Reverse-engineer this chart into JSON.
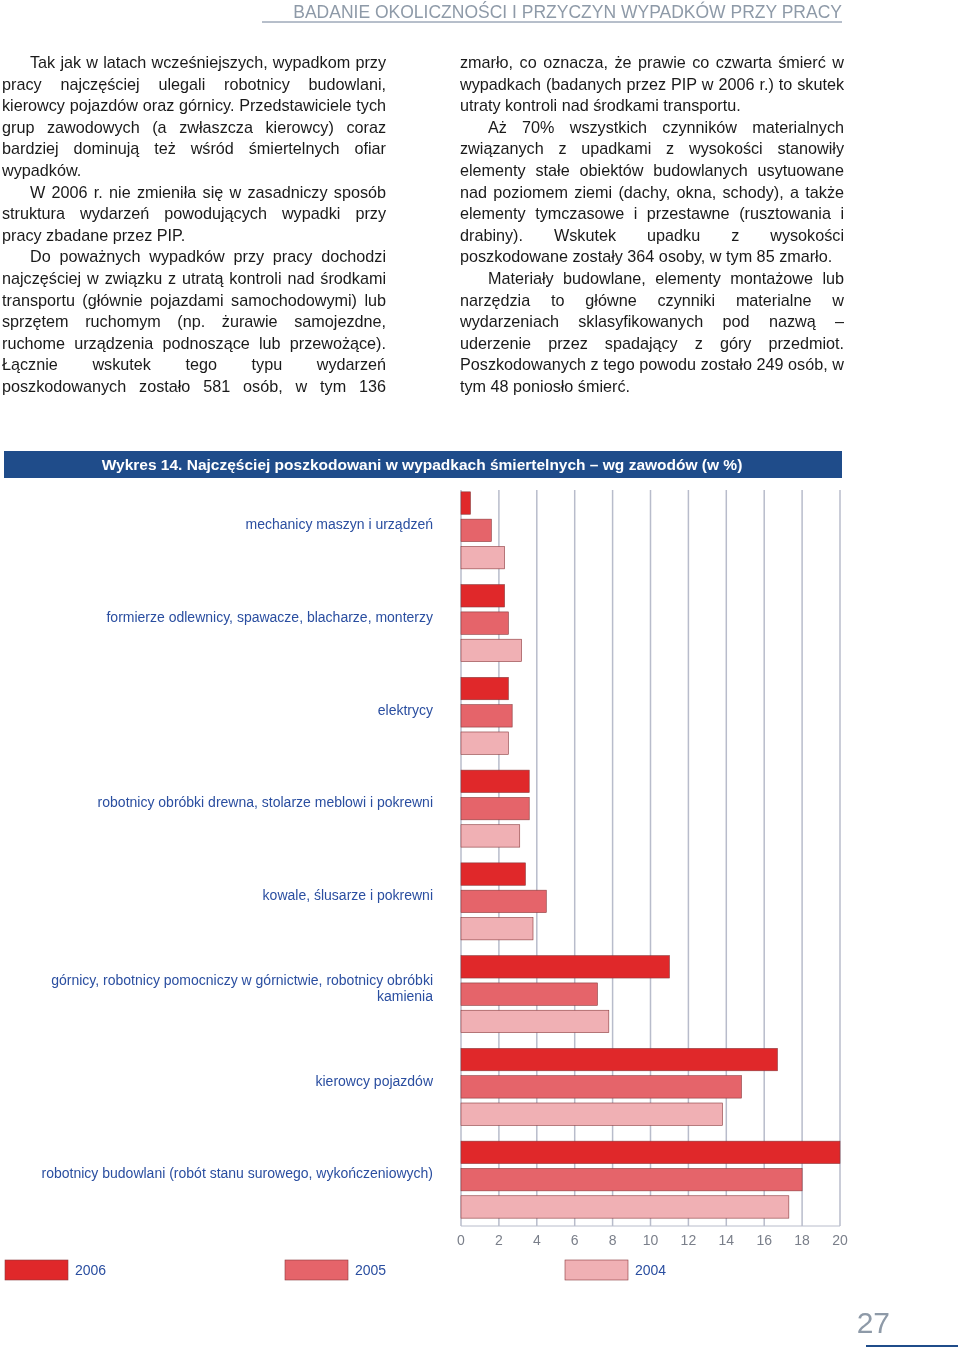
{
  "chart_data": {
    "type": "bar",
    "orientation": "horizontal",
    "title": "Wykres 14. Najczęściej poszkodowani w wypadkach śmiertelnych – wg zawodów (w %)",
    "categories": [
      "mechanicy maszyn i urządzeń",
      "formierze odlewnicy, spawacze, blacharze, monterzy",
      "elektrycy",
      "robotnicy obróbki drewna, stolarze meblowi i pokrewni",
      "kowale, ślusarze i pokrewni",
      "górnicy, robotnicy pomocniczy w górnictwie, robotnicy obróbki kamienia",
      "kierowcy pojazdów",
      "robotnicy budowlani (robót stanu surowego, wykończeniowych)"
    ],
    "series": [
      {
        "name": "2006",
        "color": "#e0282a",
        "values": [
          0.5,
          2.3,
          2.5,
          3.6,
          3.4,
          11.0,
          16.7,
          20.0
        ]
      },
      {
        "name": "2005",
        "color": "#e5646a",
        "values": [
          1.6,
          2.5,
          2.7,
          3.6,
          4.5,
          7.2,
          14.8,
          18.0
        ]
      },
      {
        "name": "2004",
        "color": "#f0b0b4",
        "values": [
          2.3,
          3.2,
          2.5,
          3.1,
          3.8,
          7.8,
          13.8,
          17.3
        ]
      }
    ],
    "xlim": [
      0,
      20
    ],
    "xticks": [
      0,
      2,
      4,
      6,
      8,
      10,
      12,
      14,
      16,
      18,
      20
    ],
    "grid": "x",
    "legend": "bottom",
    "annotations": [
      "BADANIE OKOLICZNOŚCI I PRZYCZYN WYPADKÓW PRZY PRACY",
      "Tak jak w latach wcześniejszych, wypadkom przy pracy najczęściej ulegali robotnicy budowlani, kierowcy pojazdów oraz górnicy. Przedstawiciele tych grup zawodowych (a zwłaszcza kierowcy) coraz bardziej dominują też wśród śmiertelnych ofiar wypadków.",
      "W 2006 r. nie zmieniła się w zasadniczy sposób struktura wydarzeń powodujących wypadki przy pracy zbadane przez PIP.",
      "Do poważnych wypadków przy pracy dochodzi najczęściej w związku z utratą kontroli nad środkami transportu (głównie pojazdami samochodowymi) lub sprzętem ruchomym (np. żurawie samojezdne, ruchome urządzenia podnoszące lub przewożące). Łącznie wskutek tego typu wydarzeń poszkodowanych zostało 581 osób, w tym 136 zmarło, co oznacza, że prawie co czwarta śmierć w wypadkach (badanych przez PIP w 2006 r.) to skutek utraty kontroli nad środkami transportu.",
      "Aż 70% wszystkich czynników materialnych związanych z upadkami z wysokości stanowiły elementy stałe obiektów budowlanych usytuowane nad poziomem ziemi (dachy, okna, schody), a także elementy tymczasowe i przestawne (rusztowania i drabiny). Wskutek upadku z wysokości poszkodowane zostały 364 osoby, w tym 85 zmarło.",
      "Materiały budowlane, elementy montażowe lub narzędzia to główne czynniki materialne w wydarzeniach sklasyfikowanych pod nazwą – uderzenie przez spadający z góry przedmiot. Poszkodowanych z tego powodu zostało 249 osób, w tym 48 poniosło śmierć.",
      "27"
    ]
  }
}
